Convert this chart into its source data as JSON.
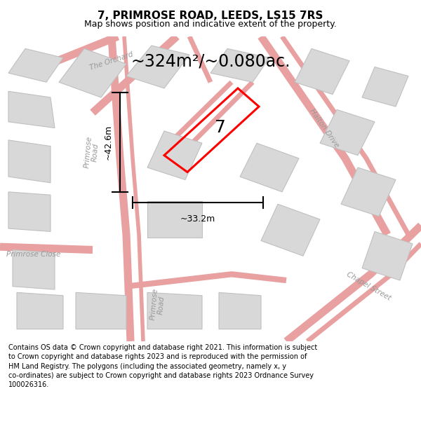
{
  "title": "7, PRIMROSE ROAD, LEEDS, LS15 7RS",
  "subtitle": "Map shows position and indicative extent of the property.",
  "area_label": "~324m²/~0.080ac.",
  "width_label": "~33.2m",
  "height_label": "~42.6m",
  "property_number": "7",
  "footer_text": "Contains OS data © Crown copyright and database right 2021. This information is subject to Crown copyright and database rights 2023 and is reproduced with the permission of HM Land Registry. The polygons (including the associated geometry, namely x, y co-ordinates) are subject to Crown copyright and database rights 2023 Ordnance Survey 100026316.",
  "road_color": "#e8a0a0",
  "building_fill": "#d8d8d8",
  "building_edge": "#c8c8c8",
  "highlight_color": "#ff0000",
  "map_bg": "#ffffff",
  "title_fs": 11,
  "subtitle_fs": 9,
  "area_fs": 17,
  "label_fs": 9,
  "road_label_fs": 7.5,
  "footer_fs": 7,
  "prop_number_fs": 18
}
